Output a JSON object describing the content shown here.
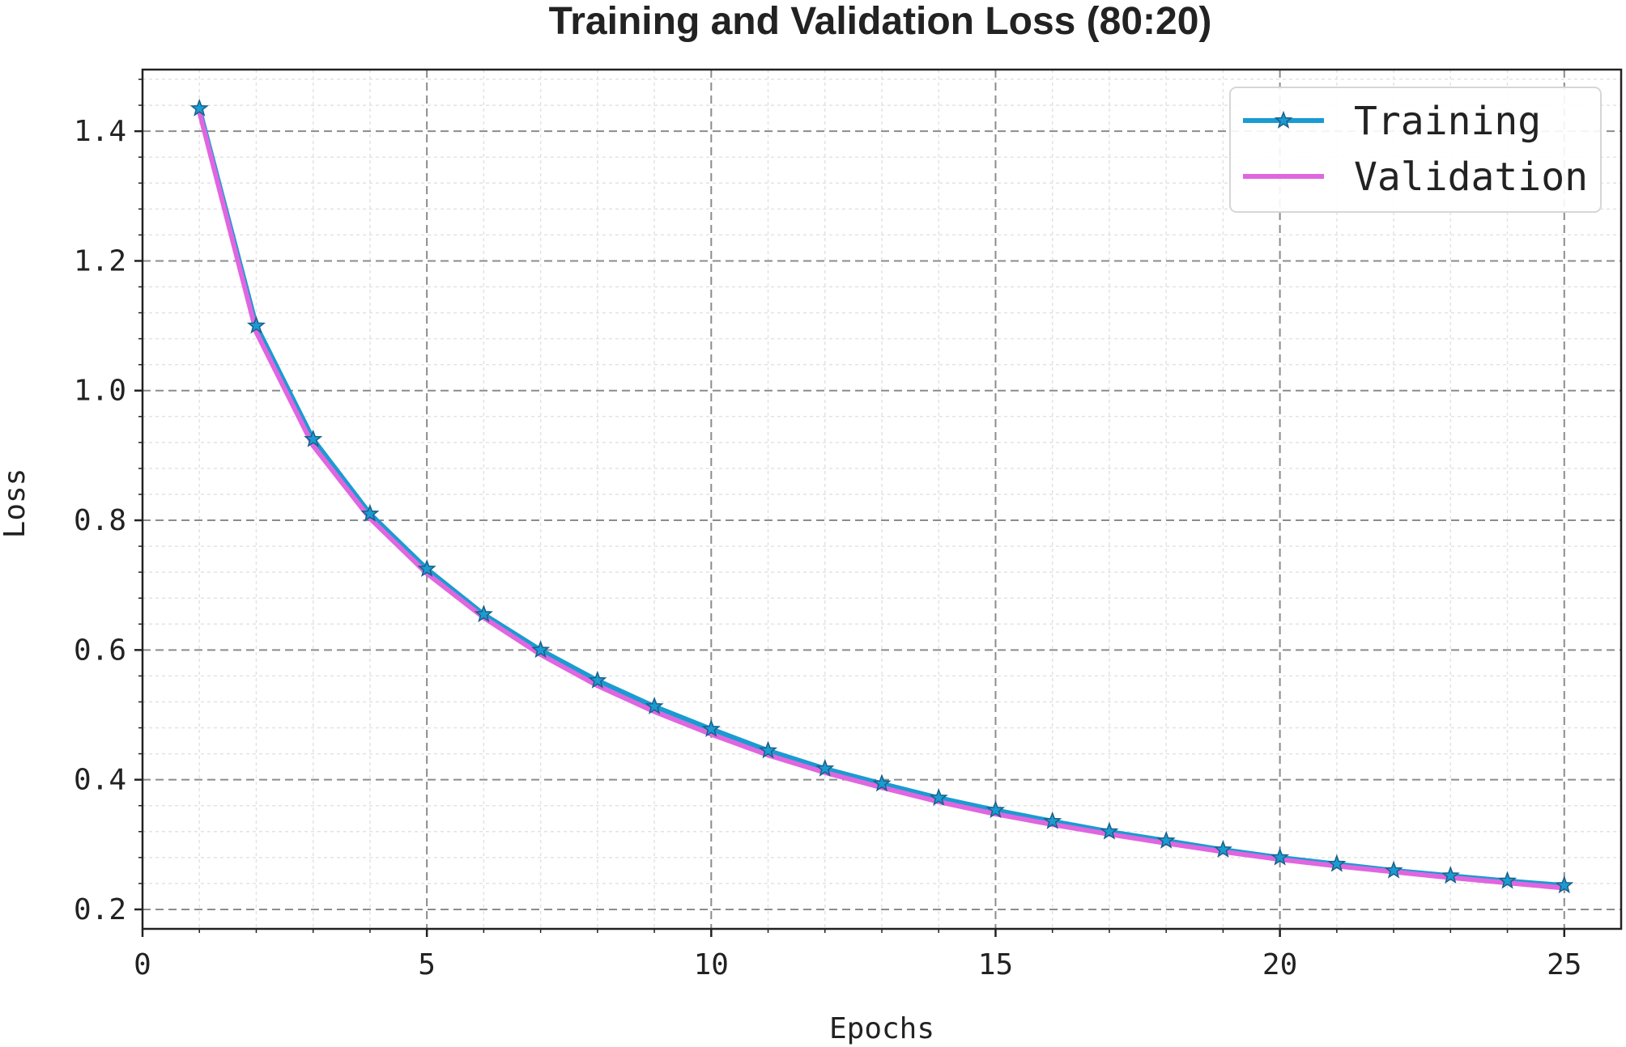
{
  "chart_data": {
    "type": "line",
    "title": "Training and Validation Loss (80:20)",
    "xlabel": "Epochs",
    "ylabel": "Loss",
    "xlim": [
      0,
      26
    ],
    "ylim": [
      0.17,
      1.495
    ],
    "xticks": [
      0,
      5,
      10,
      15,
      20,
      25
    ],
    "xtick_labels": [
      "0",
      "5",
      "10",
      "15",
      "20",
      "25"
    ],
    "yticks": [
      0.2,
      0.4,
      0.6,
      0.8,
      1.0,
      1.2,
      1.4
    ],
    "ytick_labels": [
      "0.2",
      "0.4",
      "0.6",
      "0.8",
      "1.0",
      "1.2",
      "1.4"
    ],
    "grid": true,
    "legend_position": "top-right",
    "x": [
      1,
      2,
      3,
      4,
      5,
      6,
      7,
      8,
      9,
      10,
      11,
      12,
      13,
      14,
      15,
      16,
      17,
      18,
      19,
      20,
      21,
      22,
      23,
      24,
      25
    ],
    "series": [
      {
        "name": "Training",
        "color": "#1a9bd1",
        "marker": "star",
        "values": [
          1.435,
          1.1,
          0.925,
          0.81,
          0.725,
          0.655,
          0.6,
          0.553,
          0.513,
          0.478,
          0.445,
          0.417,
          0.394,
          0.372,
          0.353,
          0.336,
          0.32,
          0.306,
          0.292,
          0.28,
          0.27,
          0.26,
          0.252,
          0.244,
          0.237
        ]
      },
      {
        "name": "Validation",
        "color": "#e066e0",
        "marker": "none",
        "values": [
          1.43,
          1.09,
          0.915,
          0.803,
          0.718,
          0.65,
          0.593,
          0.545,
          0.505,
          0.47,
          0.438,
          0.411,
          0.388,
          0.366,
          0.347,
          0.331,
          0.316,
          0.302,
          0.289,
          0.277,
          0.267,
          0.258,
          0.249,
          0.241,
          0.233
        ]
      }
    ]
  }
}
